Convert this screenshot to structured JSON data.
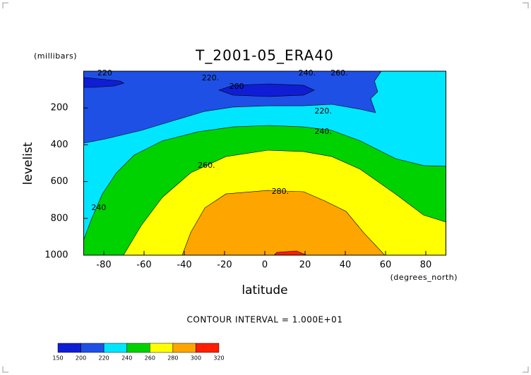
{
  "chart_data": {
    "type": "contour",
    "title": "T_2001-05_ERA40",
    "y_unit": "(millibars)",
    "x_unit": "(degrees_north)",
    "xlabel": "latitude",
    "ylabel": "levelist",
    "note": "CONTOUR INTERVAL = 1.000E+01",
    "xlim": [
      -90,
      90
    ],
    "ylim": [
      1000,
      0
    ],
    "xticks": [
      -80,
      -60,
      -40,
      -20,
      0,
      20,
      40,
      60,
      80
    ],
    "yticks": [
      200,
      400,
      600,
      800,
      1000
    ],
    "levels": [
      150,
      200,
      220,
      240,
      260,
      280,
      300,
      320
    ],
    "colors": [
      "#0f1ed4",
      "#1e50e6",
      "#00e6ff",
      "#00d200",
      "#ffff00",
      "#ffa500",
      "#ff1e00"
    ],
    "regions": [
      {
        "band": 2,
        "x": [
          -90,
          90,
          90,
          -90
        ],
        "y": [
          0,
          0,
          1000,
          1000
        ]
      },
      {
        "band": 1,
        "x": [
          -90,
          57.9,
          54.5,
          56.1,
          52.6,
          55.1,
          47.4,
          33.3,
          19.3,
          1.8,
          -15.8,
          -29.8,
          -43.9,
          -61.4,
          -79,
          -90
        ],
        "y": [
          0,
          0,
          54,
          111,
          149,
          226,
          207,
          180,
          188,
          188,
          195,
          218,
          264,
          322,
          368,
          391
        ]
      },
      {
        "band": 3,
        "x": [
          -90,
          -86,
          -80.7,
          -73.7,
          -64.9,
          -50.9,
          -33.3,
          -15.8,
          1.8,
          19.3,
          33.3,
          47.4,
          64.9,
          78.9,
          90,
          90,
          -90
        ],
        "y": [
          916,
          801,
          667,
          552,
          456,
          379,
          330,
          303,
          295,
          303,
          322,
          379,
          475,
          513,
          517,
          1000,
          1000
        ]
      },
      {
        "band": 4,
        "x": [
          -70.2,
          -61.4,
          -50.9,
          -36.8,
          -19.3,
          1.8,
          19.3,
          33.3,
          47.4,
          64.9,
          78.9,
          90,
          90
        ],
        "y": [
          1000,
          839,
          686,
          552,
          464,
          429,
          437,
          464,
          533,
          667,
          782,
          820,
          1000
        ]
      },
      {
        "band": 5,
        "x": [
          -41,
          -36.8,
          -29.8,
          -19.3,
          1.8,
          19.3,
          29.8,
          40.4,
          49.1,
          59.6
        ],
        "y": [
          1000,
          877,
          743,
          667,
          648,
          655,
          705,
          762,
          877,
          1000
        ]
      },
      {
        "band": 6,
        "x": [
          4.6,
          6,
          15.8,
          20.7
        ],
        "y": [
          1000,
          985,
          977,
          1000
        ]
      },
      {
        "band": 0,
        "x": [
          -90,
          -82.3,
          -71.8,
          -70,
          -75,
          -85.6,
          -90
        ],
        "y": [
          34,
          42,
          54,
          65,
          80,
          88,
          88
        ]
      },
      {
        "band": 0,
        "x": [
          -22.8,
          -15.8,
          1.8,
          19.3,
          24.6,
          19.3,
          1.8,
          -15.8
        ],
        "y": [
          103,
          77,
          69,
          77,
          103,
          130,
          138,
          130
        ]
      }
    ],
    "contour_labels": [
      {
        "text": "220",
        "x": -79.5,
        "y": 12
      },
      {
        "text": "220.",
        "x": -27,
        "y": 38
      },
      {
        "text": "200",
        "x": -14,
        "y": 84
      },
      {
        "text": "240.",
        "x": 21,
        "y": 11
      },
      {
        "text": "260.",
        "x": 37,
        "y": 11
      },
      {
        "text": "220.",
        "x": 29,
        "y": 218
      },
      {
        "text": "240.",
        "x": 29,
        "y": 330
      },
      {
        "text": "260.",
        "x": -29,
        "y": 513
      },
      {
        "text": "280.",
        "x": 7.7,
        "y": 655
      },
      {
        "text": "240",
        "x": -82.5,
        "y": 743
      }
    ]
  }
}
